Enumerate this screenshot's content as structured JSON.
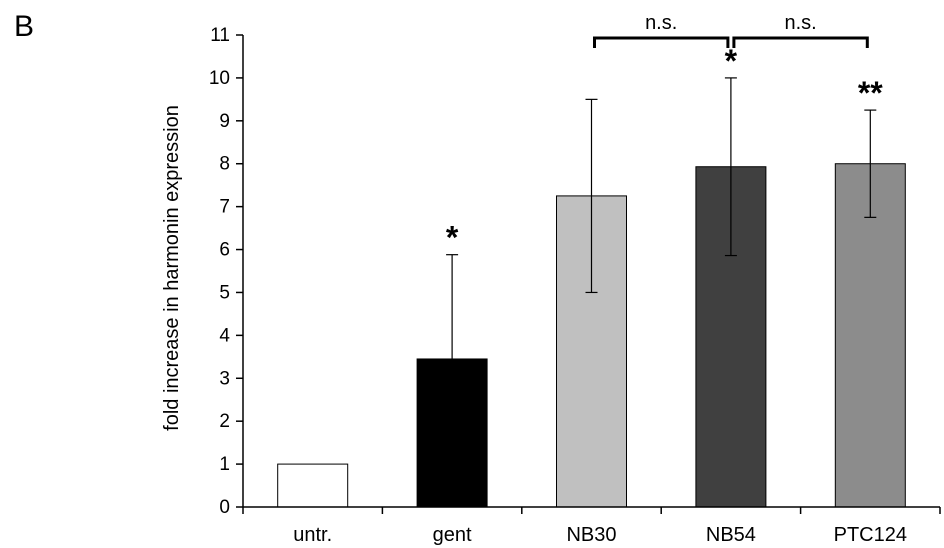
{
  "panel_label": "B",
  "chart_data": {
    "type": "bar",
    "title": "",
    "xlabel": "",
    "ylabel": "fold increase in harmonin expression",
    "ylim": [
      0,
      11
    ],
    "yticks": [
      0,
      1,
      2,
      3,
      4,
      5,
      6,
      7,
      8,
      9,
      10,
      11
    ],
    "categories": [
      "untr.",
      "gent",
      "NB30",
      "NB54",
      "PTC124"
    ],
    "values": [
      1.0,
      3.45,
      7.25,
      7.93,
      8.0
    ],
    "error_plus": [
      0,
      2.43,
      2.25,
      2.07,
      1.25
    ],
    "error_minus": [
      0,
      0,
      2.25,
      2.07,
      1.25
    ],
    "bar_colors": [
      "#ffffff",
      "#000000",
      "#c0c0c0",
      "#404040",
      "#8c8c8c"
    ],
    "significance": [
      "",
      "*",
      "",
      "*",
      "**"
    ],
    "comparisons": [
      {
        "from": "NB30",
        "to": "NB54",
        "label": "n.s."
      },
      {
        "from": "NB54",
        "to": "PTC124",
        "label": "n.s."
      }
    ],
    "grid": false,
    "legend": "none"
  }
}
